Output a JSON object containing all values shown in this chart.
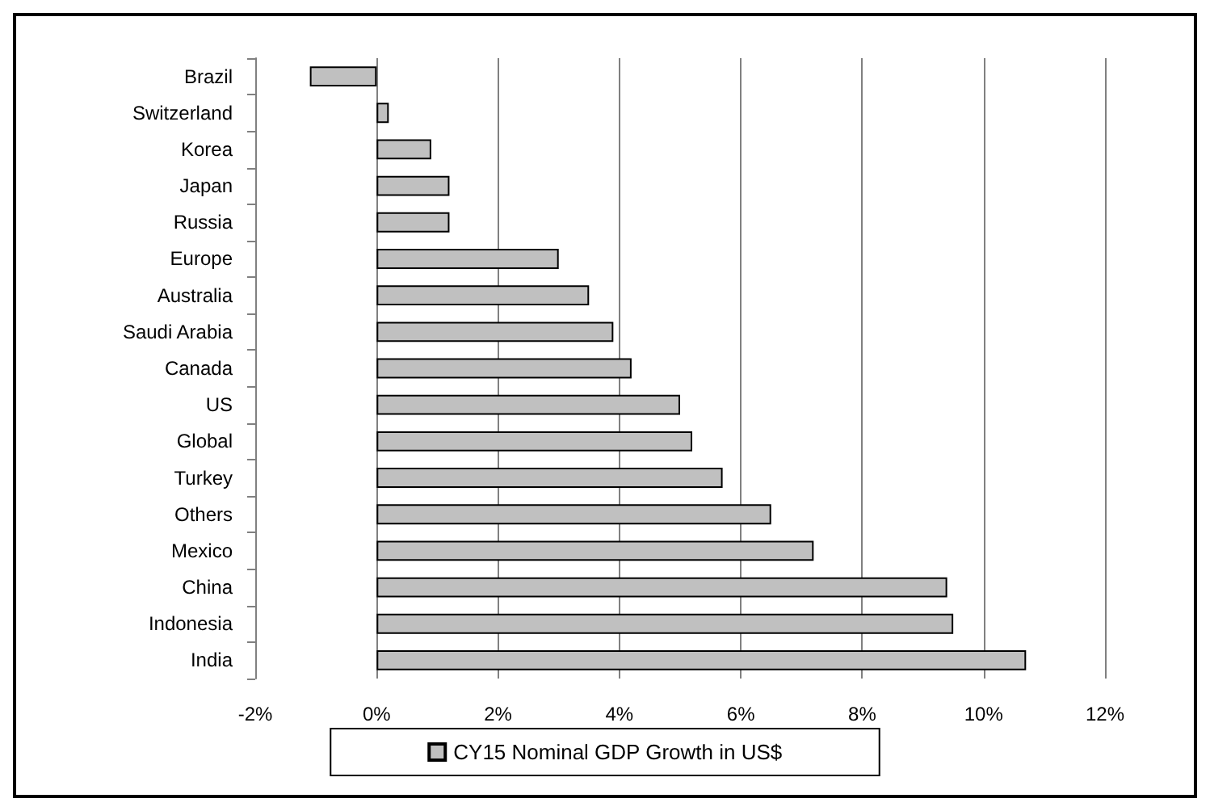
{
  "chart_data": {
    "type": "bar",
    "orientation": "horizontal",
    "categories": [
      "Brazil",
      "Switzerland",
      "Korea",
      "Japan",
      "Russia",
      "Europe",
      "Australia",
      "Saudi Arabia",
      "Canada",
      "US",
      "Global",
      "Turkey",
      "Others",
      "Mexico",
      "China",
      "Indonesia",
      "India"
    ],
    "series": [
      {
        "name": "CY15 Nominal GDP Growth in US$",
        "color": "#c0c0c0",
        "values": [
          -1.1,
          0.2,
          0.9,
          1.2,
          1.2,
          3.0,
          3.5,
          3.9,
          4.2,
          5.0,
          5.2,
          5.7,
          6.5,
          7.2,
          9.4,
          9.5,
          10.7
        ]
      }
    ],
    "xlim": [
      -2,
      12
    ],
    "xticks": [
      {
        "value": -2,
        "label": "-2%"
      },
      {
        "value": 0,
        "label": "0%"
      },
      {
        "value": 2,
        "label": "2%"
      },
      {
        "value": 4,
        "label": "4%"
      },
      {
        "value": 6,
        "label": "6%"
      },
      {
        "value": 8,
        "label": "8%"
      },
      {
        "value": 10,
        "label": "10%"
      },
      {
        "value": 12,
        "label": "12%"
      }
    ],
    "grid": "x",
    "legend": "bottom"
  }
}
